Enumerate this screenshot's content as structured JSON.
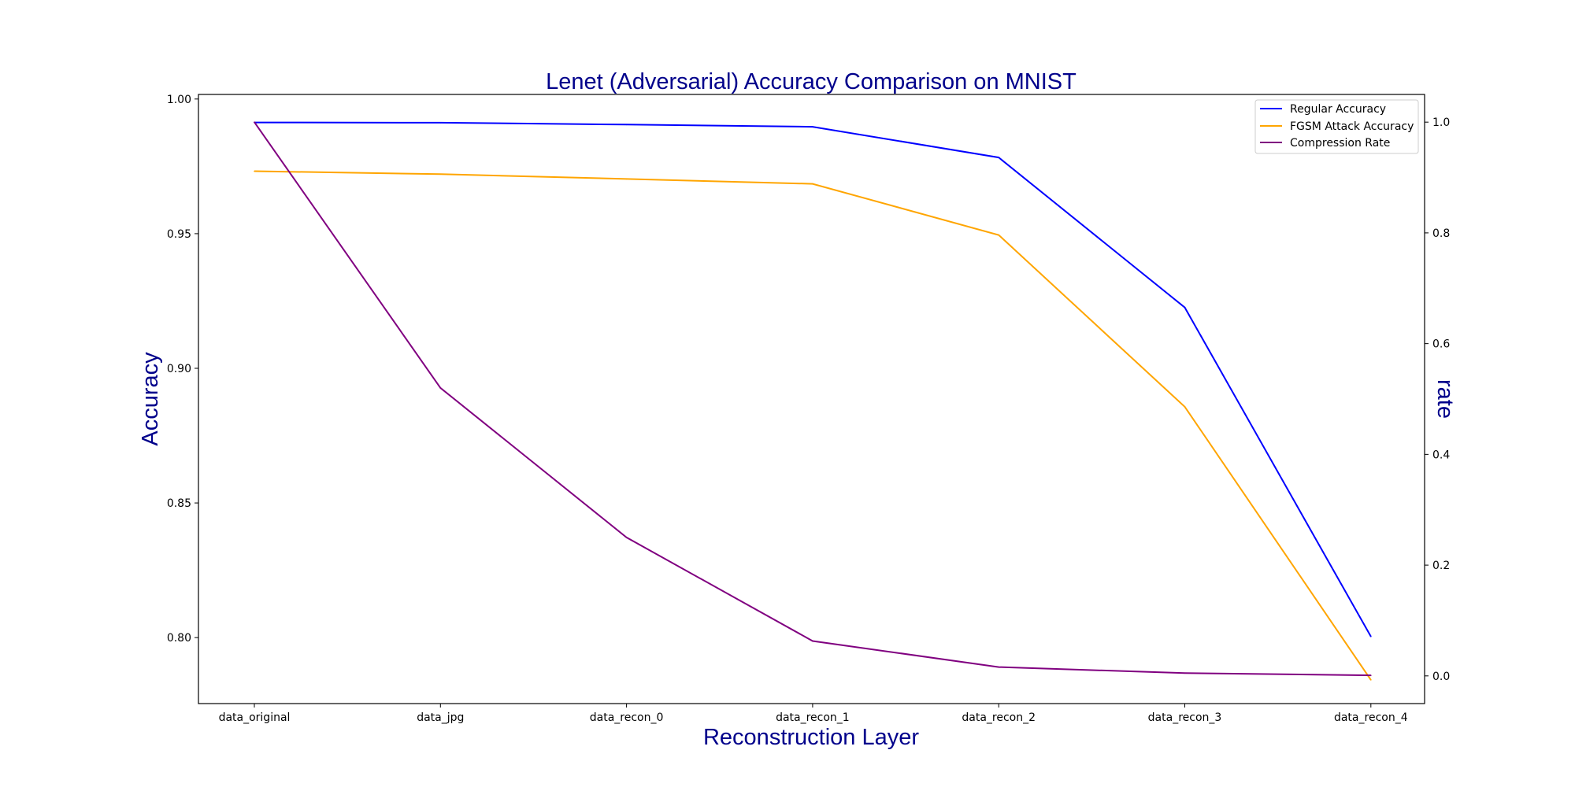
{
  "chart_data": {
    "type": "line",
    "title": "Lenet (Adversarial) Accuracy Comparison on MNIST",
    "xlabel": "Reconstruction Layer",
    "ylabel": "Accuracy",
    "y2label": "rate",
    "categories": [
      "data_original",
      "data_jpg",
      "data_recon_0",
      "data_recon_1",
      "data_recon_2",
      "data_recon_3",
      "data_recon_4"
    ],
    "ylim": [
      0.7755,
      1.0017
    ],
    "y2lim": [
      -0.05,
      1.05
    ],
    "yticks": [
      "0.80",
      "0.85",
      "0.90",
      "0.95",
      "1.00"
    ],
    "y2ticks": [
      "0.0",
      "0.2",
      "0.4",
      "0.6",
      "0.8",
      "1.0"
    ],
    "series": [
      {
        "name": "Regular Accuracy",
        "axis": "left",
        "color": "#0000ff",
        "values": [
          0.9913,
          0.9912,
          0.9905,
          0.9897,
          0.9783,
          0.9226,
          0.8004
        ]
      },
      {
        "name": "FGSM Attack Accuracy",
        "axis": "left",
        "color": "#ffa500",
        "values": [
          0.9732,
          0.9721,
          0.9703,
          0.9685,
          0.9495,
          0.8857,
          0.7843
        ]
      },
      {
        "name": "Compression Rate",
        "axis": "right",
        "color": "#800080",
        "values": [
          1.0,
          0.52,
          0.25,
          0.063,
          0.016,
          0.005,
          0.001
        ]
      }
    ],
    "legend_position": "upper right",
    "grid": false
  }
}
